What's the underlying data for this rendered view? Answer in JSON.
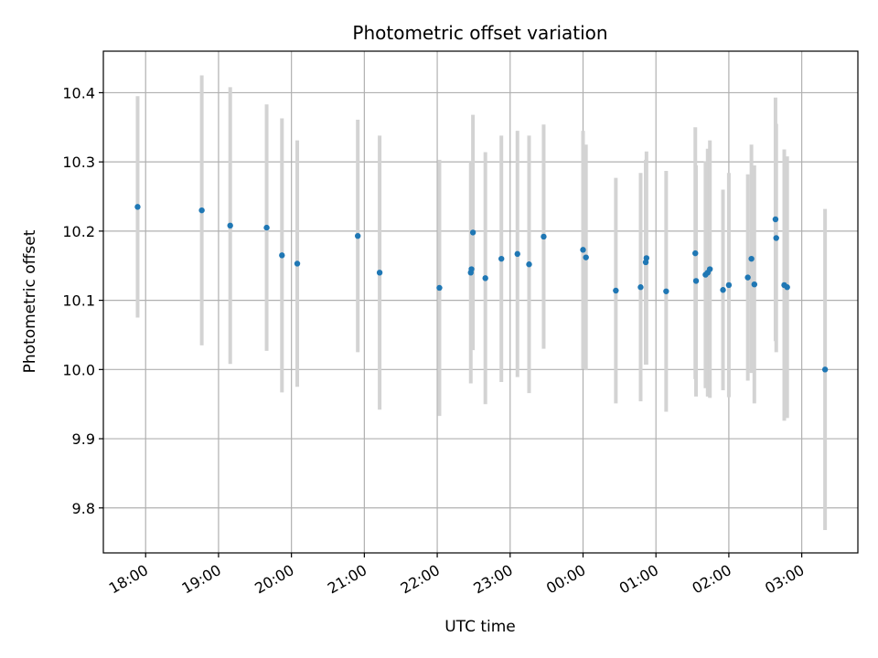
{
  "chart_data": {
    "type": "scatter",
    "title": "Photometric offset variation",
    "xlabel": "UTC time",
    "ylabel": "Photometric offset",
    "x_tick_labels": [
      "18:00",
      "19:00",
      "20:00",
      "21:00",
      "22:00",
      "23:00",
      "00:00",
      "01:00",
      "02:00",
      "03:00"
    ],
    "x_tick_hours": [
      18,
      19,
      20,
      21,
      22,
      23,
      24,
      25,
      26,
      27
    ],
    "xlim_hours": [
      17.42,
      27.77
    ],
    "y_ticks": [
      9.8,
      9.9,
      10.0,
      10.1,
      10.2,
      10.3,
      10.4
    ],
    "y_tick_labels": [
      "9.8",
      "9.9",
      "10.0",
      "10.1",
      "10.2",
      "10.3",
      "10.4"
    ],
    "ylim": [
      9.735,
      10.46
    ],
    "grid": true,
    "point_color": "#1f77b4",
    "errorbar_color": "#d3d3d3",
    "series": [
      {
        "points": [
          {
            "t": 17.89,
            "y": 10.235,
            "err": 0.16
          },
          {
            "t": 18.77,
            "y": 10.23,
            "err": 0.195
          },
          {
            "t": 19.16,
            "y": 10.208,
            "err": 0.2
          },
          {
            "t": 19.66,
            "y": 10.205,
            "err": 0.178
          },
          {
            "t": 19.87,
            "y": 10.165,
            "err": 0.198
          },
          {
            "t": 20.08,
            "y": 10.153,
            "err": 0.178
          },
          {
            "t": 20.91,
            "y": 10.193,
            "err": 0.168
          },
          {
            "t": 21.21,
            "y": 10.14,
            "err": 0.198
          },
          {
            "t": 22.03,
            "y": 10.118,
            "err": 0.185
          },
          {
            "t": 22.46,
            "y": 10.14,
            "err": 0.16
          },
          {
            "t": 22.47,
            "y": 10.145,
            "err": 0.115
          },
          {
            "t": 22.49,
            "y": 10.198,
            "err": 0.17
          },
          {
            "t": 22.66,
            "y": 10.132,
            "err": 0.182
          },
          {
            "t": 22.88,
            "y": 10.16,
            "err": 0.178
          },
          {
            "t": 23.1,
            "y": 10.167,
            "err": 0.178
          },
          {
            "t": 23.26,
            "y": 10.152,
            "err": 0.186
          },
          {
            "t": 23.46,
            "y": 10.192,
            "err": 0.162
          },
          {
            "t": 24.0,
            "y": 10.173,
            "err": 0.172
          },
          {
            "t": 24.04,
            "y": 10.162,
            "err": 0.163
          },
          {
            "t": 24.45,
            "y": 10.114,
            "err": 0.163
          },
          {
            "t": 24.79,
            "y": 10.119,
            "err": 0.165
          },
          {
            "t": 24.86,
            "y": 10.155,
            "err": 0.148
          },
          {
            "t": 24.87,
            "y": 10.161,
            "err": 0.154
          },
          {
            "t": 25.14,
            "y": 10.113,
            "err": 0.174
          },
          {
            "t": 25.54,
            "y": 10.168,
            "err": 0.182
          },
          {
            "t": 25.55,
            "y": 10.128,
            "err": 0.167
          },
          {
            "t": 25.68,
            "y": 10.137,
            "err": 0.164
          },
          {
            "t": 25.71,
            "y": 10.14,
            "err": 0.179
          },
          {
            "t": 25.74,
            "y": 10.145,
            "err": 0.186
          },
          {
            "t": 25.92,
            "y": 10.115,
            "err": 0.145
          },
          {
            "t": 26.0,
            "y": 10.122,
            "err": 0.162
          },
          {
            "t": 26.26,
            "y": 10.133,
            "err": 0.149
          },
          {
            "t": 26.31,
            "y": 10.16,
            "err": 0.165
          },
          {
            "t": 26.35,
            "y": 10.123,
            "err": 0.172
          },
          {
            "t": 26.64,
            "y": 10.217,
            "err": 0.176
          },
          {
            "t": 26.65,
            "y": 10.19,
            "err": 0.165
          },
          {
            "t": 26.76,
            "y": 10.122,
            "err": 0.196
          },
          {
            "t": 26.8,
            "y": 10.119,
            "err": 0.189
          },
          {
            "t": 27.32,
            "y": 10.0,
            "err": 0.232
          }
        ]
      }
    ]
  }
}
